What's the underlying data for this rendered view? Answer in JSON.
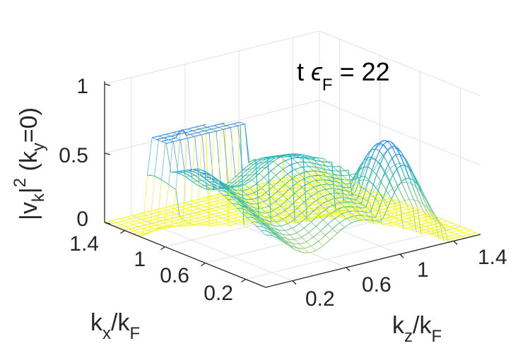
{
  "chart_data": {
    "type": "surface",
    "title": {
      "prefix": "t ",
      "symbol": "ϵ",
      "sub": "F",
      "suffix": " = 22"
    },
    "xlabel": {
      "main": "k",
      "sub": "x",
      "rest": "/k",
      "sub2": "F"
    },
    "ylabel": {
      "main": "k",
      "sub": "z",
      "rest": "/k",
      "sub2": "F"
    },
    "zlabel": {
      "p1": "|v",
      "sub1": "k",
      "p2": "|",
      "sup": "2",
      "p3": " (k",
      "sub2": "y",
      "p4": "=0)"
    },
    "kx_ticks": [
      "1.4",
      "1",
      "0.6",
      "0.2"
    ],
    "kz_ticks": [
      "0.2",
      "0.6",
      "1",
      "1.4"
    ],
    "z_ticks": [
      "0",
      "0.5",
      "1"
    ],
    "zlim": [
      0,
      1
    ],
    "kx_range": [
      0,
      1.6
    ],
    "kz_range": [
      0,
      1.6
    ],
    "grid": true,
    "colormap": [
      "#3e26a8",
      "#2e87f7",
      "#1bb8b6",
      "#7fc97f",
      "#f9fb0e"
    ],
    "features": {
      "plateau_height": 0.75,
      "left_peak": {
        "kx": 1.05,
        "kz": 0.15,
        "height": 0.82
      },
      "right_hump": {
        "kx": 0.2,
        "kz": 1.05,
        "height": 0.75
      },
      "ridge_kx": 0.7
    }
  }
}
